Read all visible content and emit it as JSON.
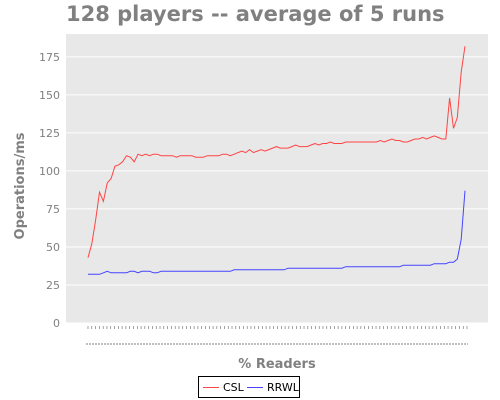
{
  "title": "128 players -- average of 5 runs",
  "chart_data": {
    "type": "line",
    "title": "128 players -- average of 5 runs",
    "xlabel": "% Readers",
    "ylabel": "Operations/ms",
    "ylim": [
      0,
      190
    ],
    "yticks": [
      0,
      25,
      50,
      75,
      100,
      125,
      150,
      175
    ],
    "grid": true,
    "legend_position": "bottom-center",
    "x_tick_count": 101,
    "series": [
      {
        "name": "CSL",
        "color": "#ff4444",
        "values": [
          43,
          52,
          68,
          86,
          80,
          92,
          95,
          103,
          104,
          106,
          110,
          109,
          106,
          111,
          110,
          111,
          110,
          111,
          111,
          110,
          110,
          110,
          110,
          109,
          110,
          110,
          110,
          110,
          109,
          109,
          109,
          110,
          110,
          110,
          110,
          111,
          111,
          110,
          111,
          112,
          113,
          112,
          114,
          112,
          113,
          114,
          113,
          114,
          115,
          116,
          115,
          115,
          115,
          116,
          117,
          116,
          116,
          116,
          117,
          118,
          117,
          118,
          118,
          119,
          118,
          118,
          118,
          119,
          119,
          119,
          119,
          119,
          119,
          119,
          119,
          119,
          120,
          119,
          120,
          121,
          120,
          120,
          119,
          119,
          120,
          121,
          121,
          122,
          121,
          122,
          123,
          122,
          121,
          121,
          148,
          128,
          135,
          165,
          182
        ]
      },
      {
        "name": "RRWL",
        "color": "#4444ff",
        "values": [
          32,
          32,
          32,
          32,
          33,
          34,
          33,
          33,
          33,
          33,
          33,
          34,
          34,
          33,
          34,
          34,
          34,
          33,
          33,
          34,
          34,
          34,
          34,
          34,
          34,
          34,
          34,
          34,
          34,
          34,
          34,
          34,
          34,
          34,
          34,
          34,
          34,
          34,
          35,
          35,
          35,
          35,
          35,
          35,
          35,
          35,
          35,
          35,
          35,
          35,
          35,
          35,
          36,
          36,
          36,
          36,
          36,
          36,
          36,
          36,
          36,
          36,
          36,
          36,
          36,
          36,
          36,
          37,
          37,
          37,
          37,
          37,
          37,
          37,
          37,
          37,
          37,
          37,
          37,
          37,
          37,
          37,
          38,
          38,
          38,
          38,
          38,
          38,
          38,
          38,
          39,
          39,
          39,
          39,
          40,
          40,
          42,
          55,
          87
        ]
      }
    ]
  }
}
